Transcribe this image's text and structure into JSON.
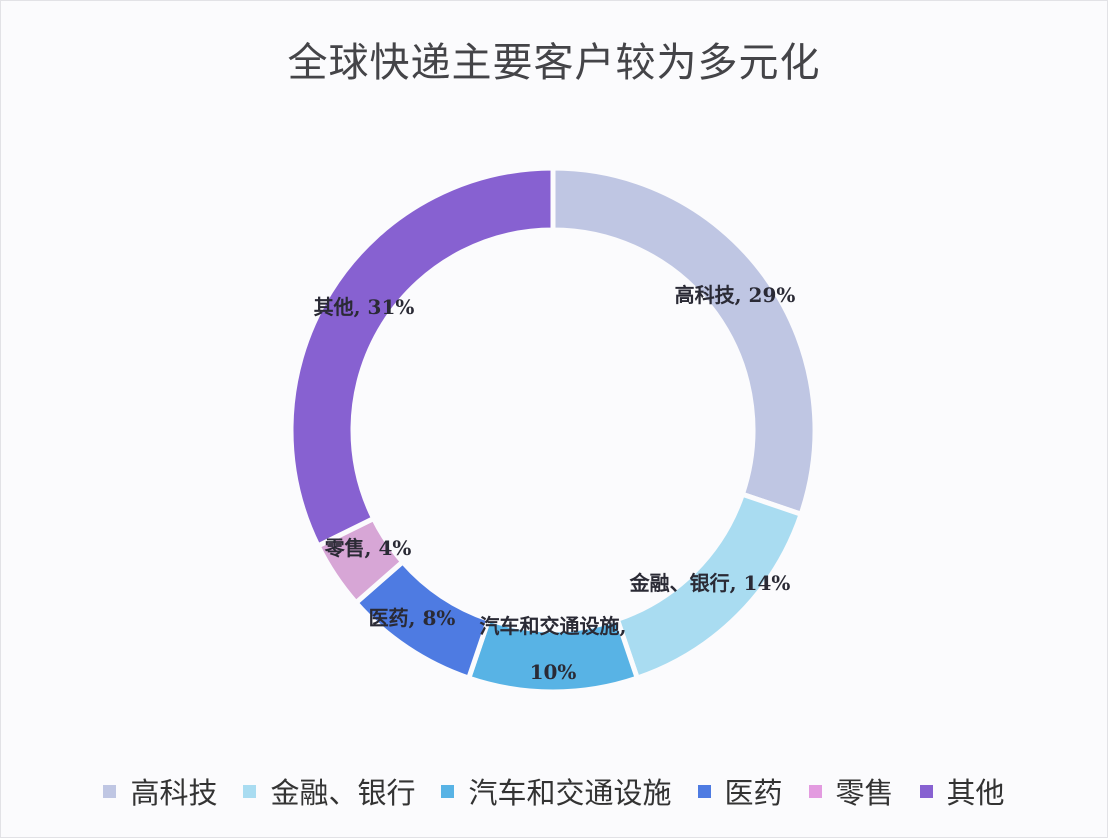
{
  "chart_data": {
    "type": "pie",
    "variant": "donut",
    "title": "全球快递主要客户较为多元化",
    "categories": [
      "高科技",
      "金融、银行",
      "汽车和交通设施",
      "医药",
      "零售",
      "其他"
    ],
    "values": [
      29,
      14,
      10,
      8,
      4,
      31
    ],
    "unit": "%",
    "colors": [
      "#bfc6e3",
      "#a9dcf1",
      "#58b3e5",
      "#4e7be2",
      "#d7a6d6",
      "#8761d1"
    ],
    "data_labels": [
      "高科技, 29%",
      "金融、银行, 14%",
      "汽车和交通设施, 10%",
      "医药, 8%",
      "零售, 4%",
      "其他, 31%"
    ],
    "legend_position": "bottom",
    "start_angle": "12 o'clock, clockwise"
  },
  "title": "全球快递主要客户较为多元化",
  "legend": [
    {
      "label": "高科技",
      "color": "#bfc6e3"
    },
    {
      "label": "金融、银行",
      "color": "#a9dcf1"
    },
    {
      "label": "汽车和交通设施",
      "color": "#58b3e5"
    },
    {
      "label": "医药",
      "color": "#4e7be2"
    },
    {
      "label": "零售",
      "color": "#e39be0"
    },
    {
      "label": "其他",
      "color": "#8761d1"
    }
  ]
}
